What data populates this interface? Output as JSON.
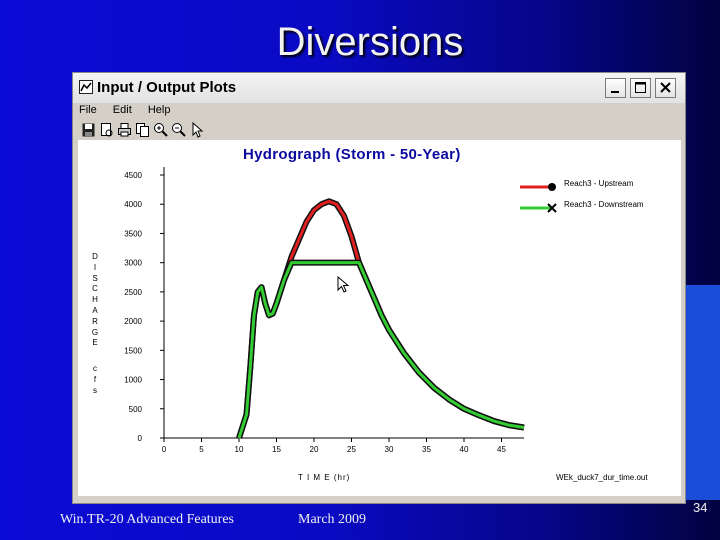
{
  "slide": {
    "title": "Diversions",
    "footer_left": "Win.TR-20 Advanced Features",
    "footer_date": "March 2009",
    "page_number": "34"
  },
  "window": {
    "title": "Input / Output Plots",
    "menu": [
      "File",
      "Edit",
      "Help"
    ],
    "toolbar_icons": [
      "save-icon",
      "print-preview-icon",
      "print-icon",
      "copy-icon",
      "zoom-in-icon",
      "zoom-out-icon",
      "pointer-icon"
    ]
  },
  "chart_data": {
    "type": "line",
    "title": "Hydrograph (Storm - 50-Year)",
    "xlabel": "T I M E (hr)",
    "ylabel_letters": [
      "D",
      "I",
      "S",
      "C",
      "H",
      "A",
      "R",
      "G",
      "E"
    ],
    "units_letters": [
      "c",
      "f",
      "s"
    ],
    "xlim": [
      0,
      48
    ],
    "ylim": [
      0,
      4500
    ],
    "xticks": [
      0,
      5,
      10,
      15,
      20,
      25,
      30,
      35,
      40,
      45
    ],
    "yticks": [
      0,
      500,
      1000,
      1500,
      2000,
      2500,
      3000,
      3500,
      4000,
      4500
    ],
    "file_label": "WEk_duck7_dur_time.out",
    "series": [
      {
        "name": "Reach3 - Upstream",
        "color": "#e02020",
        "marker": "dot",
        "x": [
          10,
          11,
          11.5,
          12,
          12.5,
          13,
          13.5,
          14,
          14.5,
          15,
          16,
          17,
          18,
          19,
          20,
          21,
          22,
          23,
          24,
          25,
          26,
          27,
          28,
          29,
          30,
          32,
          34,
          36,
          38,
          40,
          42,
          44,
          46,
          48
        ],
        "y": [
          0,
          400,
          1200,
          2100,
          2500,
          2580,
          2300,
          2100,
          2130,
          2300,
          2700,
          3100,
          3400,
          3700,
          3900,
          4000,
          4050,
          4000,
          3800,
          3450,
          3000,
          2700,
          2400,
          2100,
          1850,
          1450,
          1120,
          860,
          660,
          500,
          390,
          290,
          220,
          180
        ]
      },
      {
        "name": "Reach3 - Downstream",
        "color": "#33cc33",
        "marker": "x",
        "x": [
          10,
          11,
          11.5,
          12,
          12.5,
          13,
          13.5,
          14,
          14.5,
          15,
          16,
          17,
          18,
          19,
          20,
          21,
          22,
          23,
          24,
          25,
          26,
          27,
          28,
          29,
          30,
          32,
          34,
          36,
          38,
          40,
          42,
          44,
          46,
          48
        ],
        "y": [
          0,
          400,
          1200,
          2100,
          2500,
          2580,
          2300,
          2100,
          2130,
          2300,
          2700,
          3000,
          3000,
          3000,
          3000,
          3000,
          3000,
          3000,
          3000,
          3000,
          3000,
          2700,
          2400,
          2100,
          1850,
          1450,
          1120,
          860,
          660,
          500,
          390,
          290,
          220,
          180
        ]
      }
    ]
  }
}
